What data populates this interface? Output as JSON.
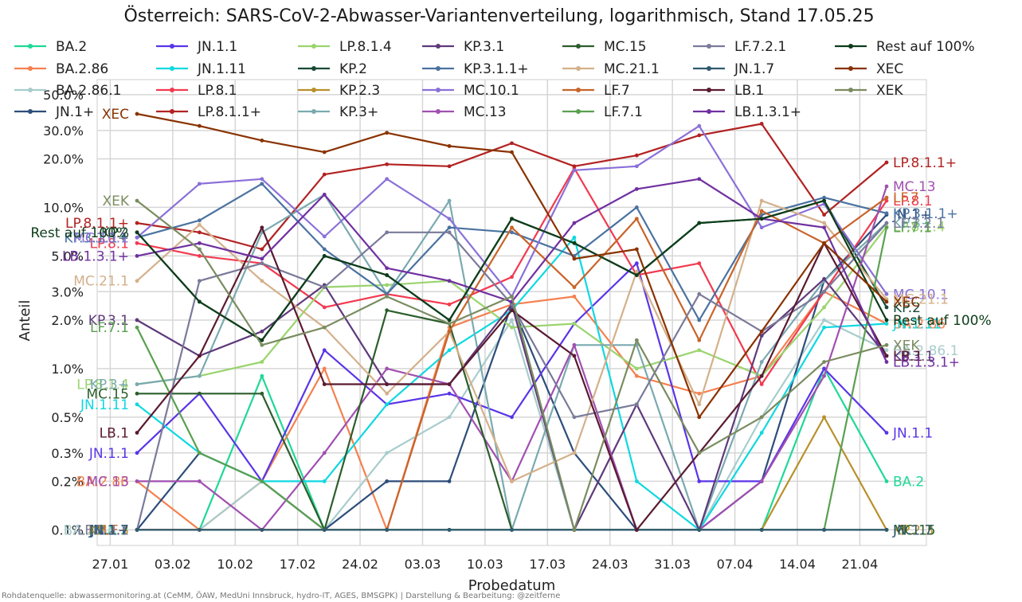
{
  "title": "Österreich: SARS-CoV-2-Abwasser-Variantenverteilung, logarithmisch, Stand 17.05.25",
  "source": "Rohdatenquelle: abwassermonitoring.at (CeMM, ÖAW, MedUni Innsbruck, hydro-IT, AGES, BMSGPK) | Darstellung & Bearbeitung: @zeitferne",
  "chart_data": {
    "type": "line",
    "title": "Österreich: SARS-CoV-2-Abwasser-Variantenverteilung, logarithmisch, Stand 17.05.25",
    "xlabel": "Probedatum",
    "ylabel": "Anteil",
    "yscale": "log",
    "ylim": [
      0.08,
      62
    ],
    "yticks": [
      {
        "v": 0.1,
        "label": "0.1%"
      },
      {
        "v": 0.2,
        "label": "0.2%"
      },
      {
        "v": 0.3,
        "label": "0.3%"
      },
      {
        "v": 0.5,
        "label": "0.5%"
      },
      {
        "v": 1,
        "label": "1.0%"
      },
      {
        "v": 2,
        "label": "2.0%"
      },
      {
        "v": 3,
        "label": "3.0%"
      },
      {
        "v": 5,
        "label": "5.0%"
      },
      {
        "v": 10,
        "label": "10.0%"
      },
      {
        "v": 20,
        "label": "20.0%"
      },
      {
        "v": 30,
        "label": "30.0%"
      },
      {
        "v": 50,
        "label": "50.0%"
      }
    ],
    "x": [
      "2025-01-30",
      "2025-02-06",
      "2025-02-13",
      "2025-02-20",
      "2025-02-27",
      "2025-03-06",
      "2025-03-13",
      "2025-03-20",
      "2025-03-27",
      "2025-04-03",
      "2025-04-10",
      "2025-04-17",
      "2025-04-24"
    ],
    "xticks": [
      "27.01",
      "03.02",
      "10.02",
      "17.02",
      "24.02",
      "03.03",
      "10.03",
      "17.03",
      "24.03",
      "31.03",
      "07.04",
      "14.04",
      "21.04"
    ],
    "grid": true,
    "legend": "top",
    "series": [
      {
        "name": "BA.2",
        "color": "#1fd896",
        "values": [
          0.1,
          0.1,
          0.9,
          0.1,
          0.1,
          0.1,
          0.1,
          0.1,
          0.1,
          0.1,
          0.1,
          1.0,
          0.2
        ]
      },
      {
        "name": "BA.2.86",
        "color": "#f5804f",
        "values": [
          0.2,
          0.1,
          0.2,
          1.0,
          0.1,
          1.8,
          2.5,
          2.8,
          0.9,
          0.7,
          0.9,
          3.0,
          1.9
        ]
      },
      {
        "name": "BA.2.86.1",
        "color": "#a8cccc",
        "values": [
          0.1,
          0.1,
          0.2,
          0.1,
          0.3,
          0.5,
          2.0,
          0.1,
          0.1,
          0.1,
          0.5,
          2.0,
          1.3
        ]
      },
      {
        "name": "JN.1+",
        "color": "#2d4d7a",
        "values": [
          0.1,
          0.3,
          0.2,
          0.1,
          0.2,
          0.2,
          2.5,
          0.3,
          0.1,
          0.1,
          0.2,
          3.5,
          9.0
        ]
      },
      {
        "name": "JN.1.1",
        "color": "#5a35e8",
        "values": [
          0.3,
          0.7,
          0.2,
          1.3,
          0.6,
          0.7,
          0.5,
          1.9,
          4.5,
          0.2,
          0.2,
          1.0,
          0.4
        ]
      },
      {
        "name": "JN.1.11",
        "color": "#10d8e0",
        "values": [
          0.6,
          0.3,
          0.2,
          0.2,
          0.6,
          1.3,
          2.3,
          6.5,
          0.2,
          0.1,
          0.4,
          1.8,
          1.9
        ]
      },
      {
        "name": "LP.8.1",
        "color": "#f23a50",
        "values": [
          6.0,
          5.0,
          4.5,
          2.4,
          2.9,
          2.5,
          3.7,
          17.5,
          3.8,
          4.5,
          0.8,
          3.0,
          11.0
        ]
      },
      {
        "name": "LP.8.1.1+",
        "color": "#b22222",
        "values": [
          8.0,
          7.0,
          5.5,
          16.0,
          18.5,
          18.0,
          25.0,
          18.0,
          21.0,
          28.0,
          33.0,
          9.0,
          19.0
        ]
      },
      {
        "name": "LP.8.1.4",
        "color": "#9ad46e",
        "values": [
          0.8,
          0.9,
          1.1,
          3.2,
          3.3,
          3.5,
          1.8,
          1.9,
          1.0,
          1.3,
          0.9,
          2.4,
          7.6
        ]
      },
      {
        "name": "KP.2",
        "color": "#1a4a35",
        "values": [
          7.0,
          2.6,
          1.5,
          5.0,
          3.8,
          2.0,
          8.5,
          6.0,
          3.8,
          8.0,
          8.5,
          11.0,
          2.4
        ]
      },
      {
        "name": "KP.2.3",
        "color": "#b8902a",
        "values": [
          0.1,
          0.1,
          0.1,
          0.1,
          0.1,
          0.1,
          0.1,
          0.1,
          0.1,
          0.1,
          0.1,
          0.5,
          0.1
        ]
      },
      {
        "name": "KP.3+",
        "color": "#7aaab0",
        "values": [
          0.8,
          0.9,
          7.0,
          12.0,
          2.9,
          11.0,
          0.1,
          1.4,
          1.4,
          0.1,
          1.1,
          3.5,
          8.0
        ]
      },
      {
        "name": "KP.3.1",
        "color": "#5e3a7a",
        "values": [
          2.0,
          1.2,
          1.7,
          3.3,
          0.8,
          0.8,
          2.5,
          0.1,
          0.6,
          0.1,
          1.6,
          3.6,
          1.2
        ]
      },
      {
        "name": "KP.3.1.1+",
        "color": "#4a72a0",
        "values": [
          6.5,
          8.3,
          14.0,
          5.5,
          2.9,
          7.5,
          7.0,
          5.0,
          10.0,
          2.0,
          9.0,
          11.5,
          9.2
        ]
      },
      {
        "name": "MC.10.1",
        "color": "#8a70d8",
        "values": [
          6.5,
          14.0,
          15.0,
          6.6,
          15.0,
          8.5,
          2.8,
          17.0,
          18.0,
          32.0,
          7.5,
          10.5,
          2.9
        ]
      },
      {
        "name": "MC.13",
        "color": "#a050b0",
        "values": [
          0.2,
          0.2,
          0.1,
          0.3,
          1.0,
          0.8,
          0.2,
          1.4,
          0.1,
          0.1,
          0.2,
          0.9,
          13.5
        ]
      },
      {
        "name": "MC.15",
        "color": "#2c5e2c",
        "values": [
          0.7,
          0.7,
          0.7,
          0.1,
          2.3,
          1.9,
          0.1,
          0.1,
          0.1,
          0.1,
          0.1,
          0.1,
          0.1
        ]
      },
      {
        "name": "MC.21.1",
        "color": "#d4b08a",
        "values": [
          3.5,
          7.8,
          3.5,
          1.8,
          0.7,
          1.7,
          0.2,
          0.3,
          4.0,
          0.6,
          11.0,
          8.0,
          2.7
        ]
      },
      {
        "name": "LF.7",
        "color": "#c8642a",
        "values": [
          0.1,
          0.1,
          0.1,
          0.1,
          0.1,
          1.7,
          7.5,
          3.2,
          8.5,
          1.5,
          9.5,
          6.0,
          11.5
        ]
      },
      {
        "name": "LF.7.1",
        "color": "#5aa050",
        "values": [
          1.8,
          0.3,
          0.2,
          0.1,
          0.1,
          0.1,
          0.1,
          0.1,
          0.1,
          0.1,
          0.1,
          0.1,
          7.5
        ]
      },
      {
        "name": "LF.7.2.1",
        "color": "#7a7a9a",
        "values": [
          0.1,
          3.5,
          4.5,
          3.2,
          7.0,
          7.0,
          2.5,
          0.5,
          0.6,
          2.9,
          1.7,
          3.0,
          8.0
        ]
      },
      {
        "name": "JN.1.7",
        "color": "#2f5a70",
        "values": [
          0.1,
          0.1,
          0.1,
          0.1,
          0.1,
          0.1,
          0.1,
          0.1,
          0.1,
          0.1,
          0.1,
          0.1,
          0.1
        ]
      },
      {
        "name": "LB.1",
        "color": "#5a1a30",
        "values": [
          0.4,
          1.2,
          7.5,
          0.8,
          0.8,
          0.8,
          2.3,
          1.2,
          0.1,
          0.3,
          0.9,
          6.0,
          1.2
        ]
      },
      {
        "name": "LB.1.3.1+",
        "color": "#7030a0",
        "values": [
          5.0,
          6.0,
          4.8,
          12.0,
          4.2,
          3.5,
          2.6,
          8.0,
          13.0,
          15.0,
          8.5,
          7.5,
          1.1
        ]
      },
      {
        "name": "Rest auf 100%",
        "color": "#0d3d1a",
        "values": [
          7.0,
          2.6,
          1.5,
          5.0,
          3.8,
          2.0,
          8.5,
          6.0,
          3.8,
          8.0,
          8.5,
          11.0,
          2.0
        ]
      },
      {
        "name": "XEC",
        "color": "#8a3200",
        "values": [
          38.0,
          32.0,
          26.0,
          22.0,
          29.0,
          24.0,
          22.0,
          4.8,
          5.5,
          0.5,
          1.7,
          6.0,
          2.6
        ]
      },
      {
        "name": "XEK",
        "color": "#7a8c60",
        "values": [
          11.0,
          5.5,
          1.4,
          1.8,
          2.8,
          1.9,
          2.8,
          0.1,
          1.5,
          0.3,
          0.5,
          1.1,
          1.4
        ]
      }
    ]
  }
}
